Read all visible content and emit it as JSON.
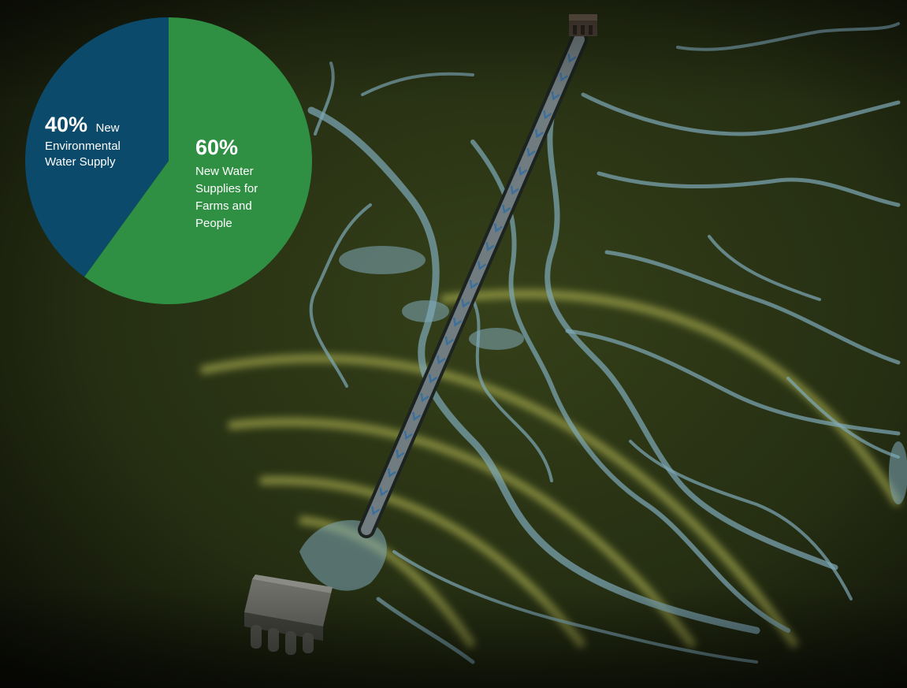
{
  "chart_data": {
    "type": "pie",
    "slices": [
      {
        "value": 40,
        "percent_label": "40%",
        "label_lines": [
          "New",
          "Environmental",
          "Water Supply"
        ],
        "color": "#0b4a6b"
      },
      {
        "value": 60,
        "percent_label": "60%",
        "label_lines": [
          "New Water",
          "Supplies for",
          "Farms and",
          "People"
        ],
        "color": "#2f8f43"
      }
    ],
    "start": "top",
    "direction": "clockwise-green-first"
  },
  "colors": {
    "terrain": "#2b3516",
    "terrain_dark": "#0a0c05",
    "water": "#7fa9b9",
    "arc_glow": "#d7d864",
    "tunnel": "#8e9ba0",
    "tunnel_arrow": "#3c6f9a"
  },
  "icons": [
    "intake-facility-icon",
    "pumping-plant-icon",
    "flow-arrow-icon"
  ]
}
